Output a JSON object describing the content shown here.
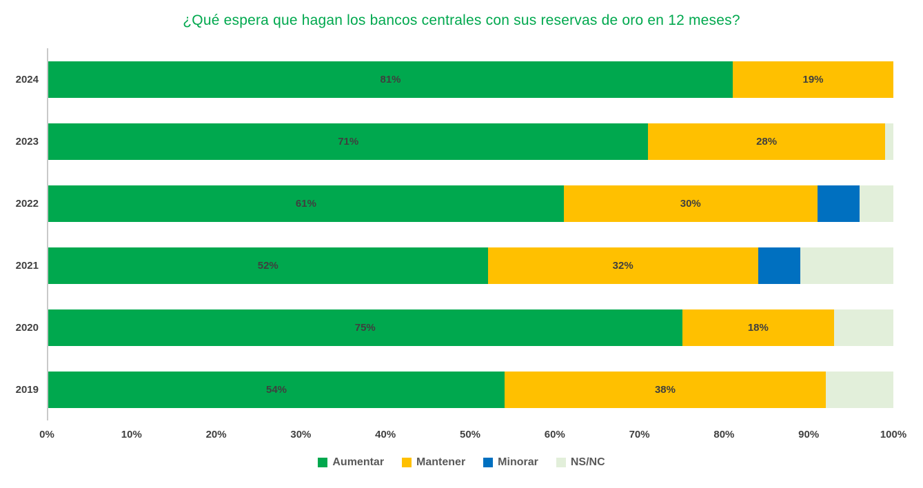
{
  "chart_data": {
    "type": "bar",
    "orientation": "horizontal-stacked",
    "title": "¿Qué espera que hagan los bancos centrales con sus reservas de oro en 12 meses?",
    "categories": [
      "2024",
      "2023",
      "2022",
      "2021",
      "2020",
      "2019"
    ],
    "series": [
      {
        "name": "Aumentar",
        "color": "#00A84E",
        "show_labels": true,
        "values": [
          81,
          71,
          61,
          52,
          75,
          54
        ]
      },
      {
        "name": "Mantener",
        "color": "#FFC000",
        "show_labels": true,
        "values": [
          19,
          28,
          30,
          32,
          18,
          38
        ]
      },
      {
        "name": "Minorar",
        "color": "#0070C0",
        "show_labels": false,
        "values": [
          0,
          0,
          5,
          5,
          0,
          0
        ]
      },
      {
        "name": "NS/NC",
        "color": "#E2EFDA",
        "show_labels": false,
        "values": [
          0,
          1,
          4,
          11,
          7,
          8
        ]
      }
    ],
    "x_ticks": [
      "0%",
      "10%",
      "20%",
      "30%",
      "40%",
      "50%",
      "60%",
      "70%",
      "80%",
      "90%",
      "100%"
    ],
    "xlim": [
      0,
      100
    ],
    "value_suffix": "%",
    "legend_position": "bottom",
    "grid": false,
    "colors": {
      "title": "#00A84E",
      "axis_line": "#C9C9C9",
      "tick_label": "#404040",
      "category_label": "#404040",
      "data_label": "#3F3F3F",
      "legend_label": "#595959"
    }
  }
}
